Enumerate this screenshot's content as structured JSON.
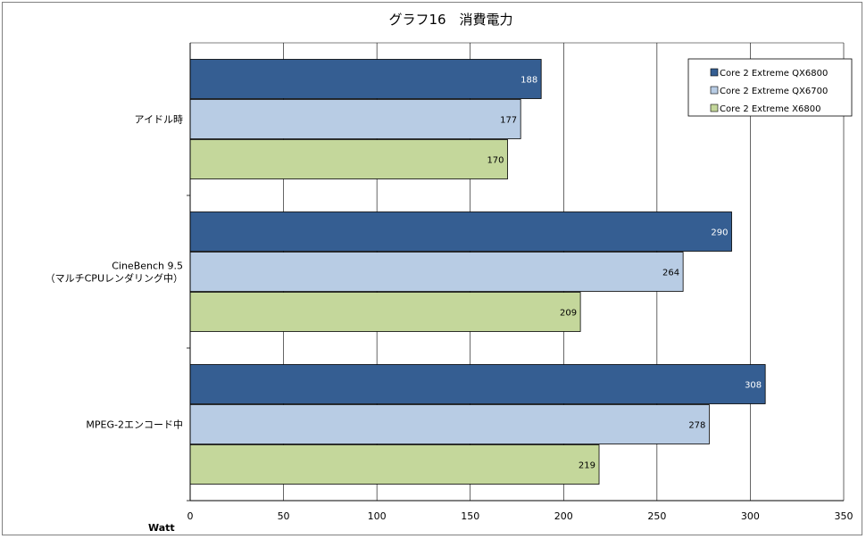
{
  "chart_data": {
    "type": "bar",
    "orientation": "horizontal",
    "title": "グラフ16　消費電力",
    "xlabel": "Watt",
    "xlim": [
      0,
      350
    ],
    "xticks": [
      0,
      50,
      100,
      150,
      200,
      250,
      300,
      350
    ],
    "grid": true,
    "legend_position": "top-right",
    "categories": [
      [
        "アイドル時"
      ],
      [
        "CineBench 9.5",
        "（マルチCPUレンダリング中）"
      ],
      [
        "MPEG-2エンコード中"
      ]
    ],
    "series": [
      {
        "name": "Core 2 Extreme QX6800",
        "color": "#355e92",
        "label_color": "#ffffff",
        "values": [
          188,
          290,
          308
        ]
      },
      {
        "name": "Core 2 Extreme QX6700",
        "color": "#b8cce4",
        "label_color": "#000000",
        "values": [
          177,
          264,
          278
        ]
      },
      {
        "name": "Core 2 Extreme X6800",
        "color": "#c4d79b",
        "label_color": "#000000",
        "values": [
          170,
          209,
          219
        ]
      }
    ]
  }
}
